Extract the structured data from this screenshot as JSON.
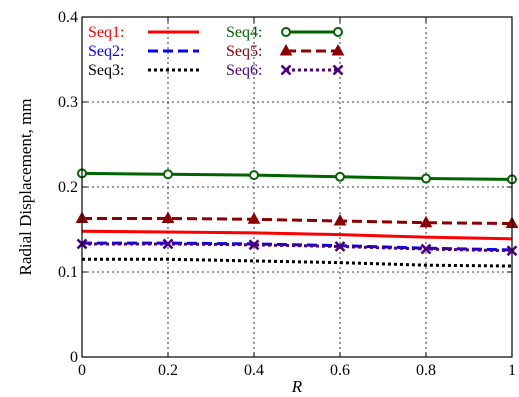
{
  "chart_data": {
    "type": "line",
    "title": "",
    "xlabel": "R",
    "ylabel": "Radial Displacement, mm",
    "xlim": [
      0,
      1
    ],
    "ylim": [
      0,
      0.4
    ],
    "x": [
      0,
      0.2,
      0.4,
      0.6,
      0.8,
      1.0
    ],
    "x_ticks": [
      "0",
      "0.2",
      "0.4",
      "0.6",
      "0.8",
      "1"
    ],
    "y_ticks": [
      "0",
      "0.1",
      "0.2",
      "0.3",
      "0.4"
    ],
    "grid": true,
    "legend_position": "top-left",
    "series": [
      {
        "name": "Seq1:",
        "color": "#ff0000",
        "style": "solid",
        "marker": "none",
        "values": [
          0.148,
          0.147,
          0.146,
          0.144,
          0.141,
          0.139
        ]
      },
      {
        "name": "Seq2:",
        "color": "#0000ff",
        "style": "dashed",
        "marker": "none",
        "values": [
          0.134,
          0.134,
          0.133,
          0.131,
          0.128,
          0.126
        ]
      },
      {
        "name": "Seq3:",
        "color": "#000000",
        "style": "dotted",
        "marker": "none",
        "values": [
          0.115,
          0.115,
          0.113,
          0.111,
          0.108,
          0.107
        ]
      },
      {
        "name": "Seq4:",
        "color": "#006400",
        "style": "solid",
        "marker": "circle",
        "values": [
          0.216,
          0.215,
          0.214,
          0.212,
          0.21,
          0.209
        ]
      },
      {
        "name": "Seq5:",
        "color": "#8b0000",
        "style": "dashed",
        "marker": "triangle",
        "values": [
          0.163,
          0.163,
          0.162,
          0.16,
          0.158,
          0.157
        ]
      },
      {
        "name": "Seq6:",
        "color": "#4b0082",
        "style": "dotted",
        "marker": "x",
        "values": [
          0.133,
          0.133,
          0.132,
          0.13,
          0.127,
          0.125
        ]
      }
    ]
  }
}
